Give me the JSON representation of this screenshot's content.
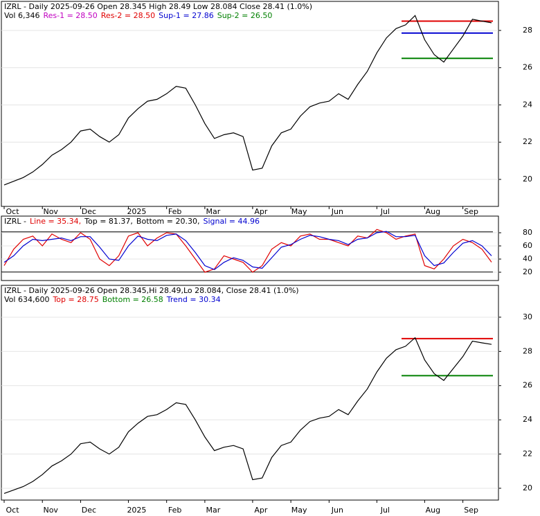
{
  "chart_data": [
    {
      "type": "line",
      "name": "price",
      "header": [
        [
          {
            "text": "IZRL - Daily 2025-09-26 Open 28.345  High 28.49  Low 28.084  Close 28.41 (1.0%)",
            "color": "#000000"
          }
        ],
        [
          {
            "text": "Vol 6,346",
            "color": "#000000"
          },
          {
            "text": "Res-1 = 28.50",
            "color": "#c000c0",
            "value": 28.5
          },
          {
            "text": "Res-2 = 28.50",
            "color": "#e00000",
            "value": 28.5
          },
          {
            "text": "Sup-1 = 27.86",
            "color": "#0000d0",
            "value": 27.86
          },
          {
            "text": "Sup-2 = 26.50",
            "color": "#008000",
            "value": 26.5
          }
        ]
      ],
      "xticks": [
        {
          "value": 0,
          "label": "Oct"
        },
        {
          "value": 4,
          "label": "Nov"
        },
        {
          "value": 8,
          "label": "Dec"
        },
        {
          "value": 13,
          "label": "2025"
        },
        {
          "value": 17,
          "label": "Feb"
        },
        {
          "value": 21,
          "label": "Mar"
        },
        {
          "value": 26,
          "label": "Apr"
        },
        {
          "value": 30,
          "label": "May"
        },
        {
          "value": 34,
          "label": "Jun"
        },
        {
          "value": 39,
          "label": "Jul"
        },
        {
          "value": 44,
          "label": "Aug"
        },
        {
          "value": 48,
          "label": "Sep"
        }
      ],
      "ylim": [
        18.55,
        29.56
      ],
      "yticks": [
        20,
        22,
        24,
        26,
        28
      ],
      "series": [
        {
          "name": "Close",
          "color": "#000000",
          "values": [
            19.7,
            19.9,
            20.1,
            20.4,
            20.8,
            21.3,
            21.6,
            22.0,
            22.6,
            22.7,
            22.3,
            22.0,
            22.4,
            23.3,
            23.8,
            24.2,
            24.3,
            24.6,
            25.0,
            24.9,
            24.0,
            23.0,
            22.2,
            22.4,
            22.5,
            22.3,
            20.5,
            20.6,
            21.8,
            22.5,
            22.7,
            23.4,
            23.9,
            24.1,
            24.2,
            24.6,
            24.3,
            25.1,
            25.8,
            26.8,
            27.6,
            28.1,
            28.3,
            28.8,
            27.5,
            26.7,
            26.3,
            27.0,
            27.7,
            28.6,
            28.5,
            28.41
          ]
        }
      ]
    },
    {
      "type": "line",
      "name": "oscillator",
      "header": [
        [
          {
            "text": "IZRL -",
            "color": "#000000"
          },
          {
            "text": "Line = 35.34,",
            "color": "#e00000"
          },
          {
            "text": "Top = 81.37,",
            "color": "#000000",
            "value": 81.37
          },
          {
            "text": "Bottom = 20.30,",
            "color": "#000000",
            "value": 20.3
          },
          {
            "text": "Signal = 44.96",
            "color": "#0000d0"
          }
        ]
      ],
      "ylim": [
        7.4,
        105.3
      ],
      "yticks": [
        20,
        40,
        60,
        80
      ],
      "series": [
        {
          "name": "Line",
          "color": "#e00000",
          "values": [
            30,
            55,
            70,
            75,
            60,
            78,
            70,
            65,
            80,
            70,
            40,
            30,
            45,
            75,
            80,
            60,
            72,
            80,
            78,
            60,
            40,
            20,
            25,
            45,
            40,
            35,
            20,
            30,
            55,
            65,
            60,
            75,
            78,
            70,
            70,
            65,
            60,
            75,
            72,
            85,
            80,
            70,
            75,
            78,
            30,
            25,
            40,
            60,
            70,
            65,
            55,
            35.34
          ]
        },
        {
          "name": "Signal",
          "color": "#0000d0",
          "values": [
            35,
            45,
            60,
            70,
            68,
            70,
            72,
            68,
            74,
            74,
            58,
            40,
            38,
            60,
            75,
            70,
            68,
            76,
            78,
            68,
            50,
            30,
            24,
            35,
            42,
            38,
            28,
            26,
            42,
            58,
            62,
            70,
            76,
            74,
            70,
            68,
            62,
            70,
            72,
            80,
            82,
            74,
            74,
            76,
            45,
            30,
            34,
            50,
            64,
            68,
            60,
            44.96
          ]
        }
      ]
    },
    {
      "type": "line",
      "name": "price-trend",
      "header": [
        [
          {
            "text": "IZRL - Daily 2025-09-26 Open 28.345,Hi 28.49,Lo 28.084, Close 28.41 (1.0%)",
            "color": "#000000"
          }
        ],
        [
          {
            "text": "Vol 634,600",
            "color": "#000000"
          },
          {
            "text": "Top = 28.75",
            "color": "#e00000",
            "value": 28.75
          },
          {
            "text": "Bottom = 26.58",
            "color": "#008000",
            "value": 26.58
          },
          {
            "text": "Trend = 30.34",
            "color": "#0000d0"
          }
        ]
      ],
      "xticks": [
        {
          "value": 0,
          "label": "Oct"
        },
        {
          "value": 4,
          "label": "Nov"
        },
        {
          "value": 8,
          "label": "Dec"
        },
        {
          "value": 13,
          "label": "2025"
        },
        {
          "value": 17,
          "label": "Feb"
        },
        {
          "value": 21,
          "label": "Mar"
        },
        {
          "value": 26,
          "label": "Apr"
        },
        {
          "value": 30,
          "label": "May"
        },
        {
          "value": 34,
          "label": "Jun"
        },
        {
          "value": 39,
          "label": "Jul"
        },
        {
          "value": 44,
          "label": "Aug"
        },
        {
          "value": 48,
          "label": "Sep"
        }
      ],
      "ylim": [
        19.31,
        31.86
      ],
      "yticks": [
        20,
        22,
        24,
        26,
        28,
        30
      ],
      "series": [
        {
          "name": "Close",
          "color": "#000000",
          "values": [
            19.7,
            19.9,
            20.1,
            20.4,
            20.8,
            21.3,
            21.6,
            22.0,
            22.6,
            22.7,
            22.3,
            22.0,
            22.4,
            23.3,
            23.8,
            24.2,
            24.3,
            24.6,
            25.0,
            24.9,
            24.0,
            23.0,
            22.2,
            22.4,
            22.5,
            22.3,
            20.5,
            20.6,
            21.8,
            22.5,
            22.7,
            23.4,
            23.9,
            24.1,
            24.2,
            24.6,
            24.3,
            25.1,
            25.8,
            26.8,
            27.6,
            28.1,
            28.3,
            28.8,
            27.5,
            26.7,
            26.3,
            27.0,
            27.7,
            28.6,
            28.5,
            28.41
          ]
        }
      ]
    }
  ]
}
